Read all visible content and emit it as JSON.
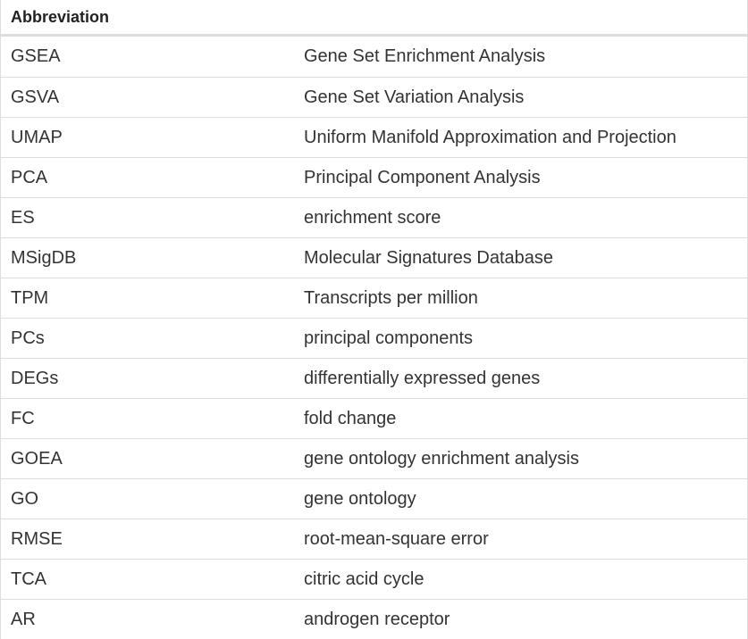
{
  "table": {
    "header": [
      "Abbreviation",
      ""
    ],
    "rows": [
      {
        "abbr": "GSEA",
        "definition": "Gene Set Enrichment Analysis"
      },
      {
        "abbr": "GSVA",
        "definition": "Gene Set Variation Analysis"
      },
      {
        "abbr": "UMAP",
        "definition": "Uniform Manifold Approximation and Projection"
      },
      {
        "abbr": "PCA",
        "definition": "Principal Component Analysis"
      },
      {
        "abbr": "ES",
        "definition": "enrichment score"
      },
      {
        "abbr": "MSigDB",
        "definition": "Molecular Signatures Database"
      },
      {
        "abbr": "TPM",
        "definition": "Transcripts per million"
      },
      {
        "abbr": "PCs",
        "definition": "principal components"
      },
      {
        "abbr": "DEGs",
        "definition": "differentially expressed genes"
      },
      {
        "abbr": "FC",
        "definition": "fold change"
      },
      {
        "abbr": "GOEA",
        "definition": "gene ontology enrichment analysis"
      },
      {
        "abbr": "GO",
        "definition": "gene ontology"
      },
      {
        "abbr": "RMSE",
        "definition": "root-mean-square error"
      },
      {
        "abbr": "TCA",
        "definition": "citric acid cycle"
      },
      {
        "abbr": "AR",
        "definition": "androgen receptor"
      }
    ]
  }
}
